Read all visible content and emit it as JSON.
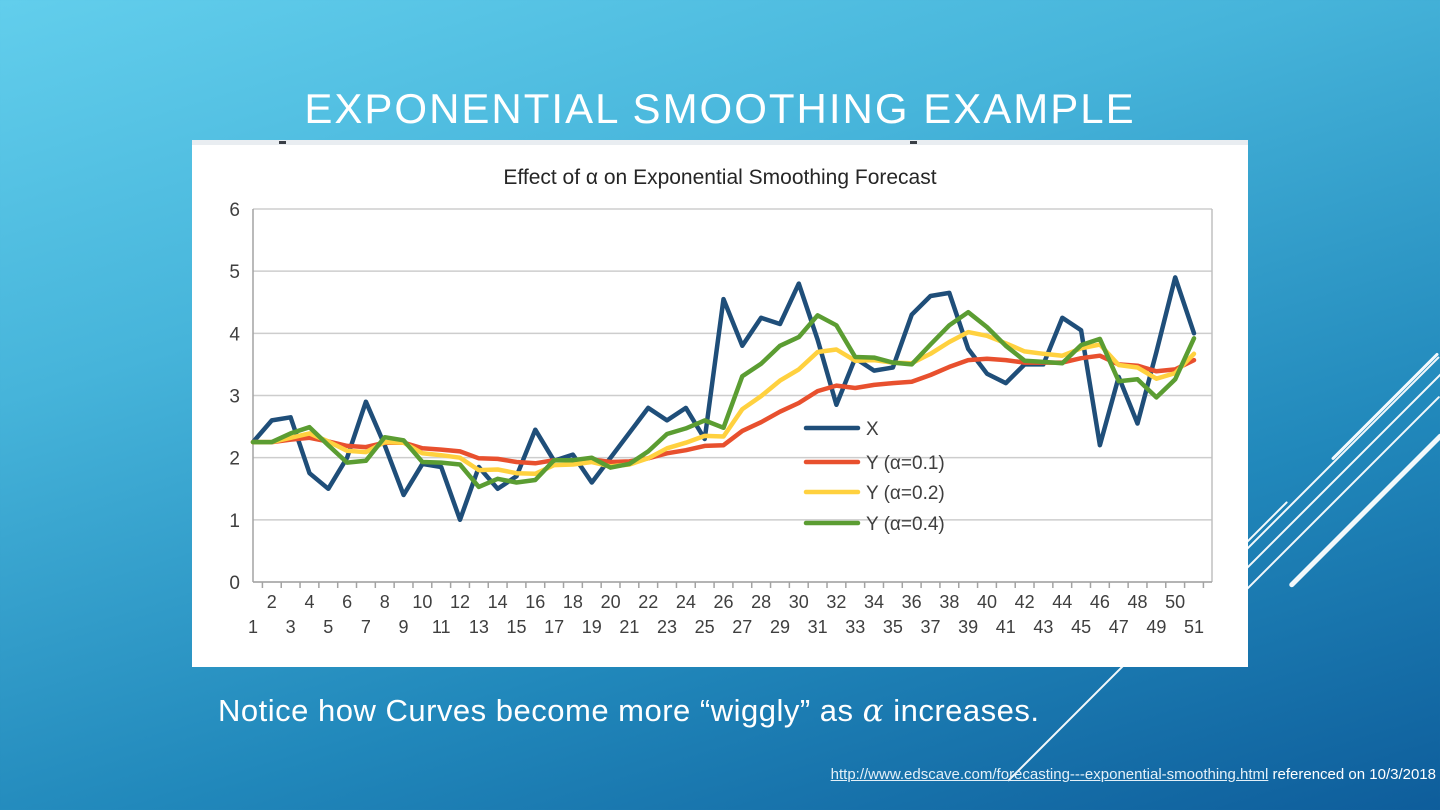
{
  "slide": {
    "title": "EXPONENTIAL SMOOTHING EXAMPLE",
    "caption": {
      "before": "Notice how Curves become more “wiggly” as ",
      "alpha": "α",
      "after": " increases."
    },
    "footer": {
      "link_text": "http://www.edscave.com/forecasting---exponential-smoothing.html",
      "suffix": " referenced on 10/3/2018"
    }
  },
  "chart_data": {
    "type": "line",
    "title": "Effect of α on Exponential Smoothing Forecast",
    "xlabel": "",
    "ylabel": "",
    "ylim": [
      0,
      6
    ],
    "yticks": [
      0,
      1,
      2,
      3,
      4,
      5,
      6
    ],
    "grid": true,
    "legend_position": "inside-right",
    "x": [
      1,
      2,
      3,
      4,
      5,
      6,
      7,
      8,
      9,
      10,
      11,
      12,
      13,
      14,
      15,
      16,
      17,
      18,
      19,
      20,
      21,
      22,
      23,
      24,
      25,
      26,
      27,
      28,
      29,
      30,
      31,
      32,
      33,
      34,
      35,
      36,
      37,
      38,
      39,
      40,
      41,
      42,
      43,
      44,
      45,
      46,
      47,
      48,
      49,
      50,
      51
    ],
    "series": [
      {
        "name": "X",
        "color": "#1F4E79",
        "values": [
          2.25,
          2.6,
          2.65,
          1.75,
          1.5,
          2.0,
          2.9,
          2.2,
          1.4,
          1.9,
          1.85,
          1.0,
          1.85,
          1.5,
          1.7,
          2.45,
          1.95,
          2.05,
          1.6,
          2.0,
          2.4,
          2.8,
          2.6,
          2.8,
          2.3,
          4.55,
          3.8,
          4.25,
          4.15,
          4.8,
          3.9,
          2.85,
          3.6,
          3.4,
          3.45,
          4.3,
          4.6,
          4.65,
          3.75,
          3.35,
          3.2,
          3.5,
          3.5,
          4.25,
          4.05,
          2.2,
          3.3,
          2.55,
          3.7,
          4.9,
          4.0
        ]
      },
      {
        "name": "Y (α=0.1)",
        "color": "#E8502E",
        "values": [
          2.25,
          2.25,
          2.29,
          2.32,
          2.26,
          2.19,
          2.17,
          2.24,
          2.24,
          2.15,
          2.13,
          2.1,
          1.99,
          1.98,
          1.93,
          1.91,
          1.96,
          1.96,
          1.97,
          1.93,
          1.94,
          1.99,
          2.07,
          2.12,
          2.19,
          2.2,
          2.43,
          2.57,
          2.74,
          2.88,
          3.07,
          3.16,
          3.12,
          3.17,
          3.2,
          3.22,
          3.33,
          3.46,
          3.57,
          3.59,
          3.57,
          3.53,
          3.53,
          3.53,
          3.6,
          3.64,
          3.5,
          3.48,
          3.39,
          3.42,
          3.57
        ]
      },
      {
        "name": "Y (α=0.2)",
        "color": "#FFD13F",
        "values": [
          2.25,
          2.25,
          2.32,
          2.39,
          2.26,
          2.11,
          2.09,
          2.25,
          2.24,
          2.07,
          2.04,
          2.0,
          1.8,
          1.81,
          1.75,
          1.74,
          1.88,
          1.89,
          1.93,
          1.86,
          1.89,
          1.99,
          2.15,
          2.24,
          2.35,
          2.34,
          2.78,
          2.99,
          3.24,
          3.42,
          3.7,
          3.74,
          3.56,
          3.57,
          3.53,
          3.52,
          3.67,
          3.86,
          4.02,
          3.96,
          3.84,
          3.71,
          3.67,
          3.64,
          3.76,
          3.82,
          3.49,
          3.45,
          3.27,
          3.36,
          3.67
        ]
      },
      {
        "name": "Y (α=0.4)",
        "color": "#5B9D32",
        "values": [
          2.25,
          2.25,
          2.39,
          2.49,
          2.2,
          1.92,
          1.95,
          2.33,
          2.28,
          1.93,
          1.92,
          1.89,
          1.53,
          1.66,
          1.6,
          1.64,
          1.96,
          1.96,
          2.0,
          1.84,
          1.9,
          2.1,
          2.38,
          2.47,
          2.6,
          2.48,
          3.31,
          3.51,
          3.8,
          3.94,
          4.29,
          4.13,
          3.62,
          3.61,
          3.53,
          3.5,
          3.82,
          4.13,
          4.34,
          4.1,
          3.8,
          3.56,
          3.54,
          3.52,
          3.81,
          3.91,
          3.23,
          3.26,
          2.97,
          3.26,
          3.92
        ]
      }
    ]
  }
}
